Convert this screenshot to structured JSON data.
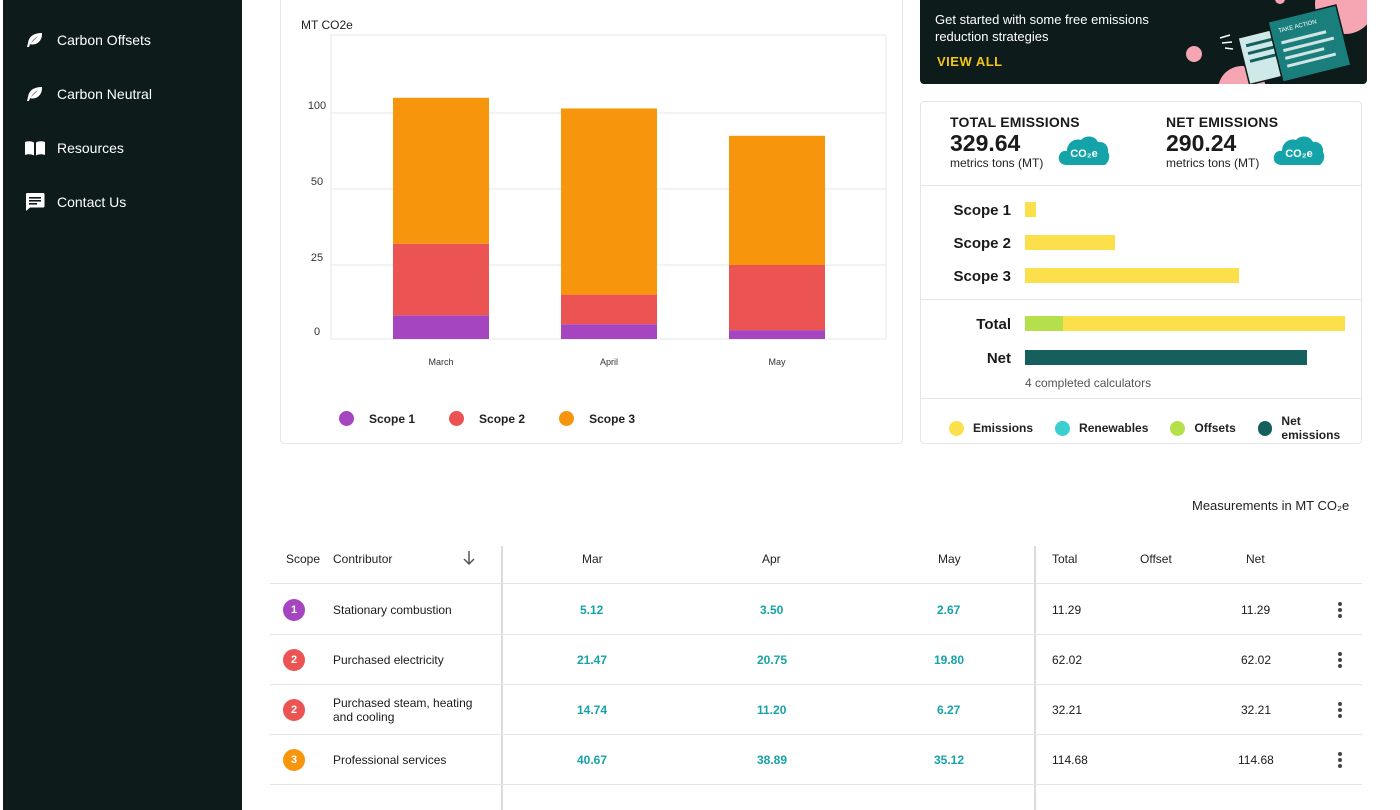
{
  "sidebar": {
    "items": [
      {
        "label": "Carbon Offsets",
        "icon": "leaf-icon"
      },
      {
        "label": "Carbon Neutral",
        "icon": "leaf-icon"
      },
      {
        "label": "Resources",
        "icon": "book-icon"
      },
      {
        "label": "Contact Us",
        "icon": "chat-icon"
      }
    ]
  },
  "chart_data": {
    "type": "bar",
    "stacked": true,
    "ylabel": "MT CO2e",
    "y_ticks": [
      "0",
      "25",
      "50",
      "100"
    ],
    "categories": [
      "March",
      "April",
      "May"
    ],
    "series": [
      {
        "name": "Scope 1",
        "color": "#a545c0",
        "values": [
          8,
          5,
          3
        ]
      },
      {
        "name": "Scope 2",
        "color": "#ec5353",
        "values": [
          24,
          10,
          22
        ]
      },
      {
        "name": "Scope 3",
        "color": "#f7960d",
        "values": [
          78,
          88,
          60
        ]
      }
    ],
    "grid": true,
    "legend": "bottom"
  },
  "promo": {
    "text": "Get started with some free emissions reduction strategies",
    "link": "VIEW ALL",
    "illustration_label": "TAKE ACTION"
  },
  "summary": {
    "total": {
      "label": "TOTAL EMISSIONS",
      "value": "329.64",
      "unit": "metrics tons (MT)",
      "badge": "CO₂e"
    },
    "net": {
      "label": "NET EMISSIONS",
      "value": "290.24",
      "unit": "metrics tons (MT)",
      "badge": "CO₂e"
    },
    "scopes": [
      {
        "label": "Scope 1",
        "fraction": 0.035
      },
      {
        "label": "Scope 2",
        "fraction": 0.28
      },
      {
        "label": "Scope 3",
        "fraction": 0.67
      }
    ],
    "total_bar": {
      "label": "Total",
      "offset_fraction": 0.12,
      "emission_fraction": 1.0
    },
    "net_bar": {
      "label": "Net",
      "fraction": 0.88
    },
    "calculators": "4 completed calculators",
    "legend": [
      {
        "label": "Emissions",
        "color": "#fbe04b"
      },
      {
        "label": "Renewables",
        "color": "#3ccfcf"
      },
      {
        "label": "Offsets",
        "color": "#b5e04c"
      },
      {
        "label": "Net emissions",
        "color": "#15605f"
      }
    ]
  },
  "table": {
    "measure_note": "Measurements in MT CO₂e",
    "headers": {
      "scope": "Scope",
      "contributor": "Contributor",
      "mar": "Mar",
      "apr": "Apr",
      "may": "May",
      "total": "Total",
      "offset": "Offset",
      "net": "Net"
    },
    "rows": [
      {
        "scope": "1",
        "color": "#a545c0",
        "contributor": "Stationary combustion",
        "mar": "5.12",
        "apr": "3.50",
        "may": "2.67",
        "total": "11.29",
        "offset": "",
        "net": "11.29"
      },
      {
        "scope": "2",
        "color": "#ec5353",
        "contributor": "Purchased electricity",
        "mar": "21.47",
        "apr": "20.75",
        "may": "19.80",
        "total": "62.02",
        "offset": "",
        "net": "62.02"
      },
      {
        "scope": "2",
        "color": "#ec5353",
        "contributor": "Purchased steam, heating and cooling",
        "mar": "14.74",
        "apr": "11.20",
        "may": "6.27",
        "total": "32.21",
        "offset": "",
        "net": "32.21"
      },
      {
        "scope": "3",
        "color": "#f7960d",
        "contributor": "Professional services",
        "mar": "40.67",
        "apr": "38.89",
        "may": "35.12",
        "total": "114.68",
        "offset": "",
        "net": "114.68"
      }
    ]
  }
}
